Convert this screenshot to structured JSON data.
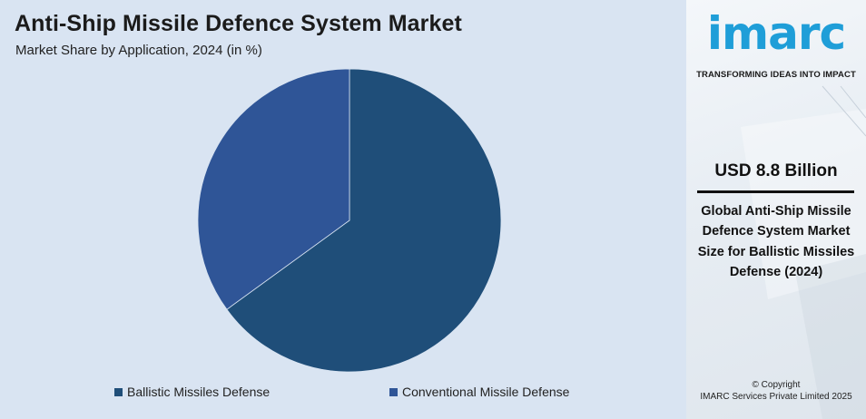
{
  "header": {
    "title": "Anti-Ship Missile Defence System Market",
    "subtitle": "Market Share by Application, 2024 (in %)"
  },
  "chart_data": {
    "type": "pie",
    "title": "Anti-Ship Missile Defence System Market",
    "subtitle": "Market Share by Application, 2024 (in %)",
    "slices": [
      {
        "label": "Ballistic Missiles Defense",
        "value": 65,
        "color": "#1f4e79"
      },
      {
        "label": "Conventional Missile Defense",
        "value": 35,
        "color": "#2f5597"
      }
    ],
    "legend_position": "bottom"
  },
  "sidebar": {
    "logo": "imarc",
    "tagline": "TRANSFORMING IDEAS INTO IMPACT",
    "value": "USD 8.8 Billion",
    "description": "Global Anti-Ship Missile Defence System Market Size for Ballistic Missiles Defense (2024)",
    "copyright_line1": "© Copyright",
    "copyright_line2": "IMARC Services Private Limited 2025"
  },
  "colors": {
    "chart_background": "#d9e4f2",
    "logo_blue": "#1f9ed8"
  }
}
